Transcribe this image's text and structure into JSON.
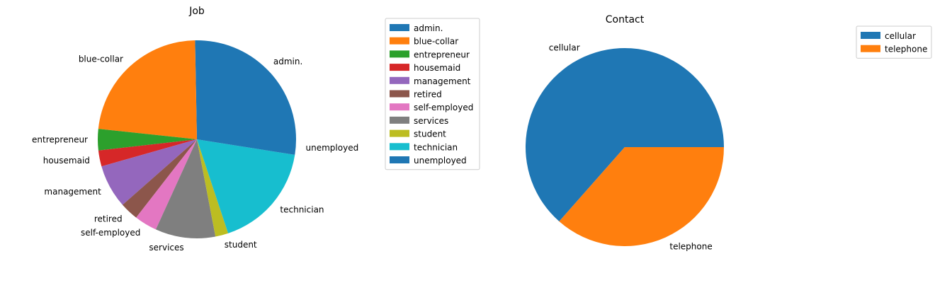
{
  "chart_data": [
    {
      "type": "pie",
      "title": "Job",
      "categories": [
        "admin.",
        "blue-collar",
        "entrepreneur",
        "housemaid",
        "management",
        "retired",
        "self-employed",
        "services",
        "student",
        "technician",
        "unemployed"
      ],
      "values": [
        25.3,
        23.0,
        3.5,
        2.6,
        7.1,
        3.0,
        3.7,
        9.8,
        2.1,
        17.4,
        2.5
      ],
      "colors": [
        "#1f77b4",
        "#ff7f0e",
        "#2ca02c",
        "#d62728",
        "#9467bd",
        "#8c564b",
        "#e377c2",
        "#7f7f7f",
        "#bcbd22",
        "#17becf",
        "#1f77b4"
      ],
      "legend": "right"
    },
    {
      "type": "pie",
      "title": "Contact",
      "categories": [
        "cellular",
        "telephone"
      ],
      "values": [
        63.5,
        36.5
      ],
      "colors": [
        "#1f77b4",
        "#ff7f0e"
      ],
      "legend": "top-right"
    }
  ]
}
